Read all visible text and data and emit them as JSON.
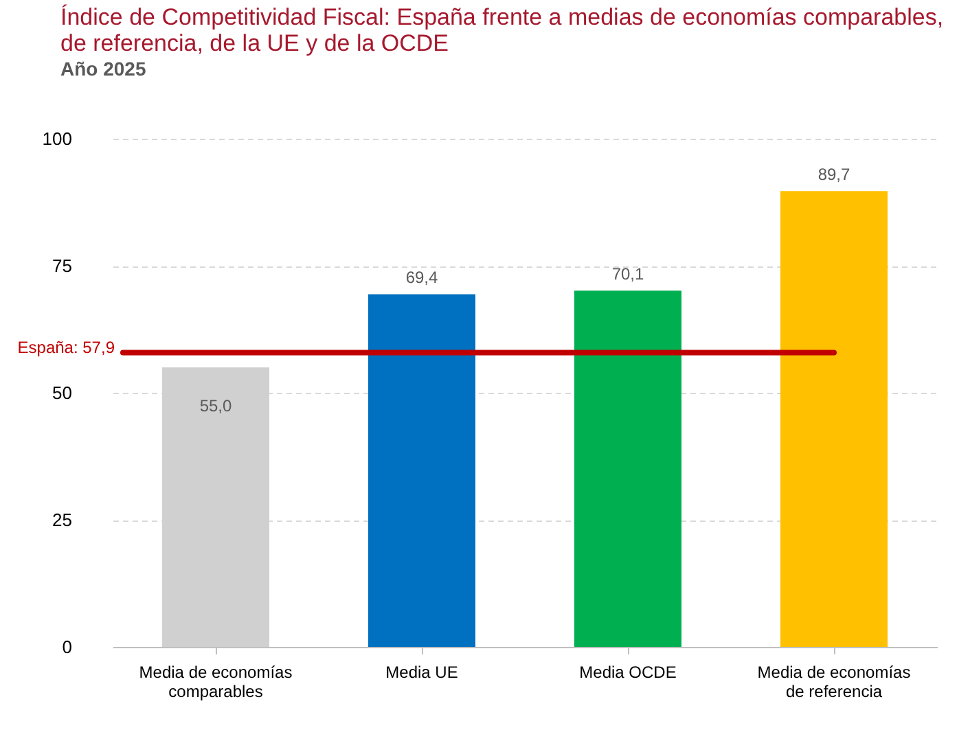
{
  "chart_data": {
    "type": "bar",
    "title": "Índice de Competitividad Fiscal: España frente a medias de economías comparables, de referencia, de la UE y de la OCDE",
    "subtitle": "Año 2025",
    "categories": [
      "Media de economías comparables",
      "Media UE",
      "Media OCDE",
      "Media de economías de referencia"
    ],
    "values": [
      55.0,
      69.4,
      70.1,
      89.7
    ],
    "colors": [
      "#d0d0d0",
      "#0070c0",
      "#00b050",
      "#ffc000"
    ],
    "value_labels": [
      "55,0",
      "69,4",
      "70,1",
      "89,7"
    ],
    "ylim": [
      0,
      100
    ],
    "yticks": [
      0,
      25,
      50,
      75,
      100
    ],
    "grid": "y",
    "ref_lines": [
      {
        "axis": "y",
        "value": 57.9,
        "label": "España: 57,9",
        "color": "#c00000"
      }
    ]
  }
}
